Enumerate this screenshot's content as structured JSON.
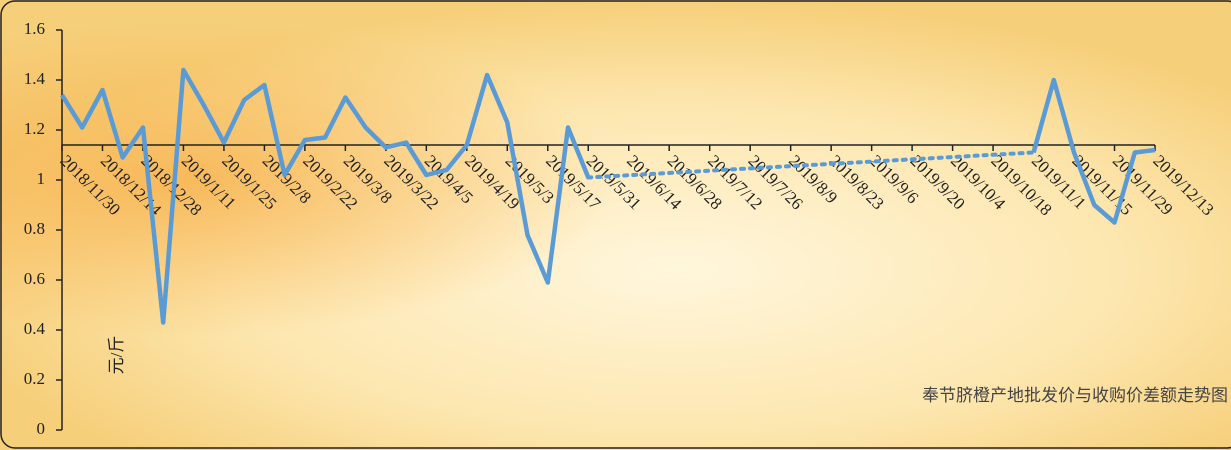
{
  "chart_data": {
    "type": "line",
    "title": "奉节脐橙产地批发价与收购价差额走势图",
    "y_label": "元/斤",
    "categories": [
      "2018/11/30",
      null,
      "2018/12/14",
      null,
      "2018/12/28",
      null,
      "2019/1/11",
      null,
      "2019/1/25",
      null,
      "2019/2/8",
      null,
      "2019/2/22",
      null,
      "2019/3/8",
      null,
      "2019/3/22",
      null,
      "2019/4/5",
      null,
      "2019/4/19",
      null,
      "2019/5/3",
      null,
      "2019/5/17",
      null,
      "2019/5/31",
      null,
      "2019/6/14",
      null,
      "2019/6/28",
      null,
      "2019/7/12",
      null,
      "2019/7/26",
      null,
      "2019/8/9",
      null,
      "2019/8/23",
      null,
      "2019/9/6",
      null,
      "2019/9/20",
      null,
      "2019/10/4",
      null,
      "2019/10/18",
      null,
      "2019/11/1",
      null,
      "2019/11/15",
      null,
      "2019/11/29",
      null,
      "2019/12/13"
    ],
    "values": [
      1.34,
      1.21,
      1.36,
      1.09,
      1.21,
      0.43,
      1.44,
      1.3,
      1.15,
      1.32,
      1.38,
      1.02,
      1.16,
      1.17,
      1.33,
      1.21,
      1.13,
      1.15,
      1.02,
      1.04,
      1.14,
      1.42,
      1.23,
      0.78,
      0.59,
      1.21,
      1.01,
      null,
      null,
      null,
      null,
      null,
      null,
      null,
      null,
      null,
      null,
      null,
      null,
      null,
      null,
      null,
      null,
      null,
      null,
      null,
      null,
      null,
      1.11,
      1.4,
      1.11,
      0.9,
      0.83,
      1.11,
      1.12
    ],
    "color": "#5b9bd5",
    "gap_style": "dotted",
    "ylim": [
      0,
      1.6
    ],
    "yticks": [
      0,
      0.2,
      0.4,
      0.6,
      0.8,
      1,
      1.2,
      1.4,
      1.6
    ],
    "x_axis_crosses": 1.14
  }
}
